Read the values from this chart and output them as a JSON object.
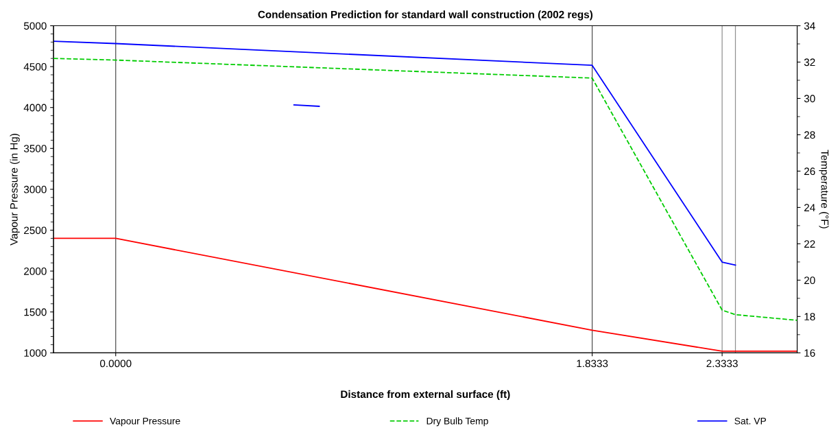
{
  "chart_data": {
    "type": "line",
    "title": "Condensation Prediction for standard wall construction (2002 regs)",
    "xlabel": "Distance from external surface (ft)",
    "ylabel": "Vapour Pressure (in Hg)",
    "y2label": "Temperature (°F)",
    "xlim": [
      -0.2393,
      2.622
    ],
    "xticks": [
      {
        "value": 0,
        "label": "0.0000"
      },
      1.8333,
      2.3333
    ],
    "ylim": [
      1000,
      5000
    ],
    "yticks": [
      1000,
      1500,
      2000,
      2500,
      3000,
      3500,
      4000,
      4500,
      5000
    ],
    "y2lim": [
      16,
      34
    ],
    "y2ticks": [
      16,
      18,
      20,
      22,
      24,
      26,
      28,
      30,
      32,
      34
    ],
    "grid": false,
    "legend": "bottom",
    "ref_lines": [
      {
        "axis": "x",
        "value": 0,
        "color": "#505050"
      },
      {
        "axis": "x",
        "value": 1.8333,
        "color": "#505050"
      },
      {
        "axis": "x",
        "value": 2.3333,
        "color": "#909090"
      },
      {
        "axis": "x",
        "value": 2.3845,
        "color": "#909090"
      }
    ],
    "series": [
      {
        "name": "Vapour Pressure",
        "color": "#ff0000",
        "line_style": "solid",
        "x": [
          -0.2393,
          0,
          1.8333,
          2.3333,
          2.3845,
          2.622
        ],
        "values": [
          2400,
          2400,
          1277,
          1020,
          1020,
          1020
        ]
      },
      {
        "name": "Dry Bulb Temp",
        "color": "#00cc00",
        "line_style": "dashed",
        "axis": "y2",
        "x": [
          -0.2393,
          0,
          1.8333,
          2.3333,
          2.3845,
          2.622
        ],
        "values": [
          32.2,
          32.11,
          31.12,
          18.35,
          18.1,
          17.79
        ]
      },
      {
        "name": "Sat. VP",
        "color": "#0000ff",
        "line_style": "solid",
        "x": [
          -0.2393,
          0,
          1.8333,
          2.3333,
          2.3845
        ],
        "values": [
          4810,
          4782,
          4516,
          2109,
          2073
        ]
      },
      {
        "color": "#0000ff",
        "line_style": "solid",
        "x": [
          0.686,
          0.783
        ],
        "values": [
          4032,
          4015
        ]
      }
    ]
  }
}
